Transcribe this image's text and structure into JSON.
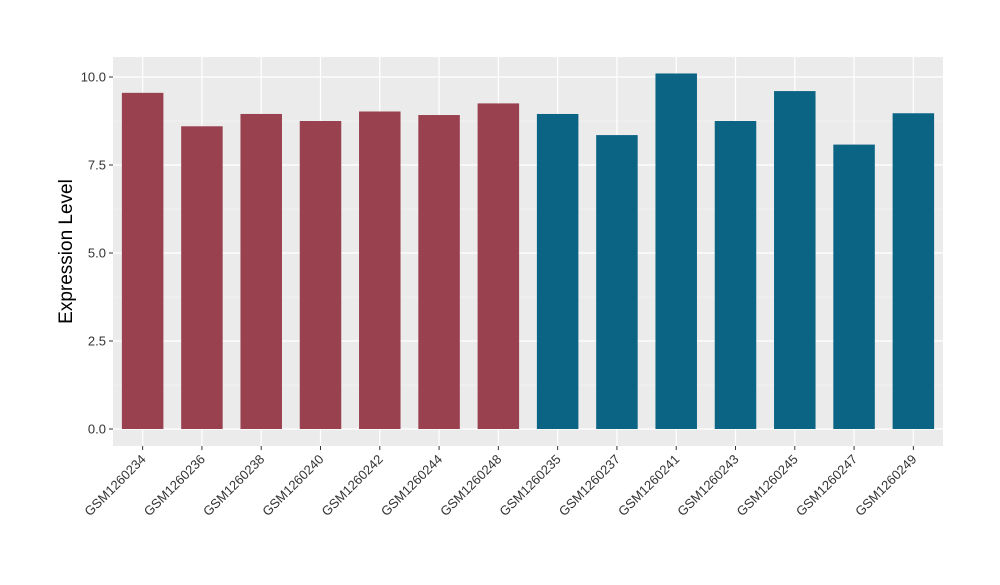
{
  "chart_data": {
    "type": "bar",
    "ylabel": "Expression Level",
    "xlabel": "",
    "ylim": [
      0,
      10.5
    ],
    "yticks": [
      0.0,
      2.5,
      5.0,
      7.5,
      10.0
    ],
    "ytick_labels": [
      "0.0",
      "2.5",
      "5.0",
      "7.5",
      "10.0"
    ],
    "grid": true,
    "background": "#EBEBEB",
    "categories": [
      "GSM1260234",
      "GSM1260236",
      "GSM1260238",
      "GSM1260240",
      "GSM1260242",
      "GSM1260244",
      "GSM1260248",
      "GSM1260235",
      "GSM1260237",
      "GSM1260241",
      "GSM1260243",
      "GSM1260245",
      "GSM1260247",
      "GSM1260249"
    ],
    "values": [
      9.55,
      8.6,
      8.95,
      8.75,
      9.02,
      8.92,
      9.25,
      8.95,
      8.35,
      10.1,
      8.75,
      9.6,
      8.08,
      8.97
    ],
    "colors": [
      "#9A4150",
      "#9A4150",
      "#9A4150",
      "#9A4150",
      "#9A4150",
      "#9A4150",
      "#9A4150",
      "#0C6484",
      "#0C6484",
      "#0C6484",
      "#0C6484",
      "#0C6484",
      "#0C6484",
      "#0C6484"
    ]
  }
}
